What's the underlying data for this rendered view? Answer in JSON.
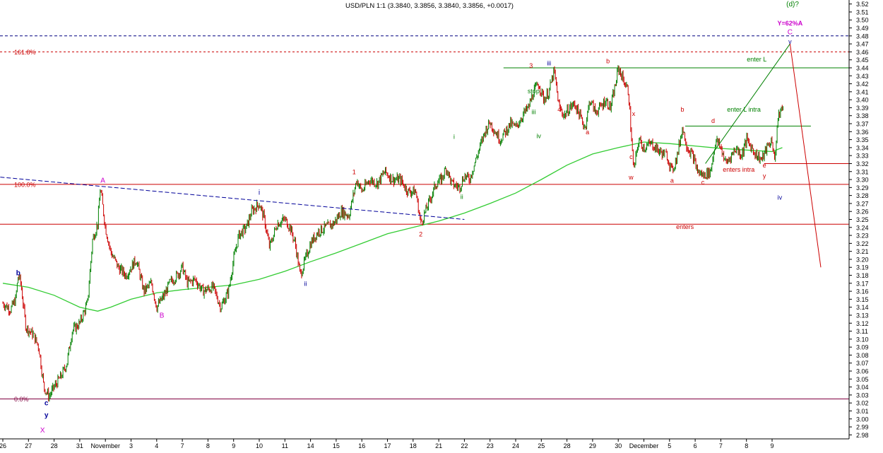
{
  "chart_data": {
    "type": "line",
    "title": "USD/PLN 1:1 (3.3840, 3.3856, 3.3840, 3.3856, +0.0017)",
    "colors": {
      "price_up": "#008000",
      "price_down": "#cc0000",
      "ma_line": "#33cc33",
      "channel_blue": "#000099",
      "fib_red": "#cc0000",
      "magenta": "#cc00cc",
      "navy": "#000099",
      "green_label": "#008000",
      "target_line": "#800040",
      "axis_text": "#000000",
      "grid_tick": "#000000"
    },
    "ylim": [
      2.975,
      3.525
    ],
    "y_ticks": [
      "3.52",
      "3.51",
      "3.50",
      "3.49",
      "3.48",
      "3.47",
      "3.46",
      "3.45",
      "3.44",
      "3.43",
      "3.42",
      "3.41",
      "3.40",
      "3.39",
      "3.38",
      "3.37",
      "3.36",
      "3.35",
      "3.34",
      "3.33",
      "3.32",
      "3.31",
      "3.30",
      "3.29",
      "3.28",
      "3.27",
      "3.26",
      "3.25",
      "3.24",
      "3.23",
      "3.22",
      "3.21",
      "3.20",
      "3.19",
      "3.18",
      "3.17",
      "3.16",
      "3.15",
      "3.14",
      "3.13",
      "3.12",
      "3.11",
      "3.10",
      "3.09",
      "3.08",
      "3.07",
      "3.06",
      "3.05",
      "3.04",
      "3.03",
      "3.02",
      "3.01",
      "3.00",
      "2.99",
      "2.98"
    ],
    "x_ticks": [
      {
        "label": "26",
        "i": 0
      },
      {
        "label": "27",
        "i": 1
      },
      {
        "label": "28",
        "i": 2
      },
      {
        "label": "31",
        "i": 3
      },
      {
        "label": "November",
        "i": 4
      },
      {
        "label": "3",
        "i": 5
      },
      {
        "label": "4",
        "i": 6
      },
      {
        "label": "7",
        "i": 7
      },
      {
        "label": "8",
        "i": 8
      },
      {
        "label": "9",
        "i": 9
      },
      {
        "label": "10",
        "i": 10
      },
      {
        "label": "11",
        "i": 11
      },
      {
        "label": "14",
        "i": 12
      },
      {
        "label": "15",
        "i": 13
      },
      {
        "label": "16",
        "i": 14
      },
      {
        "label": "17",
        "i": 15
      },
      {
        "label": "18",
        "i": 16
      },
      {
        "label": "21",
        "i": 17
      },
      {
        "label": "22",
        "i": 18
      },
      {
        "label": "23",
        "i": 19
      },
      {
        "label": "24",
        "i": 20
      },
      {
        "label": "25",
        "i": 21
      },
      {
        "label": "28",
        "i": 22
      },
      {
        "label": "29",
        "i": 23
      },
      {
        "label": "30",
        "i": 24
      },
      {
        "label": "December",
        "i": 25
      },
      {
        "label": "5",
        "i": 26
      },
      {
        "label": "6",
        "i": 27
      },
      {
        "label": "7",
        "i": 28
      },
      {
        "label": "8",
        "i": 29
      },
      {
        "label": "9",
        "i": 30
      }
    ],
    "price_path": [
      [
        0,
        3.145
      ],
      [
        0.3,
        3.137
      ],
      [
        0.5,
        3.15
      ],
      [
        0.6,
        3.18
      ],
      [
        0.7,
        3.17
      ],
      [
        0.9,
        3.115
      ],
      [
        1.2,
        3.105
      ],
      [
        1.4,
        3.09
      ],
      [
        1.6,
        3.04
      ],
      [
        1.8,
        3.028
      ],
      [
        2.0,
        3.04
      ],
      [
        2.3,
        3.055
      ],
      [
        2.5,
        3.07
      ],
      [
        2.7,
        3.11
      ],
      [
        3.0,
        3.12
      ],
      [
        3.3,
        3.145
      ],
      [
        3.5,
        3.225
      ],
      [
        3.7,
        3.245
      ],
      [
        3.8,
        3.29
      ],
      [
        4.0,
        3.24
      ],
      [
        4.2,
        3.21
      ],
      [
        4.5,
        3.19
      ],
      [
        4.8,
        3.18
      ],
      [
        5.2,
        3.2
      ],
      [
        5.5,
        3.16
      ],
      [
        5.8,
        3.17
      ],
      [
        6.0,
        3.14
      ],
      [
        6.3,
        3.155
      ],
      [
        6.5,
        3.17
      ],
      [
        6.8,
        3.18
      ],
      [
        7.0,
        3.19
      ],
      [
        7.2,
        3.17
      ],
      [
        7.5,
        3.175
      ],
      [
        7.8,
        3.16
      ],
      [
        8.2,
        3.165
      ],
      [
        8.5,
        3.14
      ],
      [
        8.8,
        3.16
      ],
      [
        9.0,
        3.2
      ],
      [
        9.2,
        3.23
      ],
      [
        9.5,
        3.24
      ],
      [
        9.7,
        3.26
      ],
      [
        10.0,
        3.27
      ],
      [
        10.2,
        3.25
      ],
      [
        10.4,
        3.215
      ],
      [
        10.7,
        3.245
      ],
      [
        11.0,
        3.25
      ],
      [
        11.2,
        3.24
      ],
      [
        11.4,
        3.22
      ],
      [
        11.6,
        3.18
      ],
      [
        11.8,
        3.2
      ],
      [
        12.0,
        3.22
      ],
      [
        12.3,
        3.235
      ],
      [
        12.6,
        3.24
      ],
      [
        12.9,
        3.245
      ],
      [
        13.2,
        3.26
      ],
      [
        13.5,
        3.255
      ],
      [
        13.8,
        3.3
      ],
      [
        14.0,
        3.285
      ],
      [
        14.3,
        3.3
      ],
      [
        14.6,
        3.295
      ],
      [
        14.9,
        3.31
      ],
      [
        15.2,
        3.3
      ],
      [
        15.5,
        3.3
      ],
      [
        15.8,
        3.285
      ],
      [
        16.1,
        3.285
      ],
      [
        16.3,
        3.245
      ],
      [
        16.6,
        3.27
      ],
      [
        16.9,
        3.295
      ],
      [
        17.1,
        3.3
      ],
      [
        17.3,
        3.315
      ],
      [
        17.5,
        3.295
      ],
      [
        17.8,
        3.29
      ],
      [
        18.0,
        3.305
      ],
      [
        18.2,
        3.3
      ],
      [
        18.5,
        3.33
      ],
      [
        18.8,
        3.36
      ],
      [
        19.0,
        3.372
      ],
      [
        19.2,
        3.36
      ],
      [
        19.4,
        3.35
      ],
      [
        19.6,
        3.36
      ],
      [
        19.8,
        3.37
      ],
      [
        20.0,
        3.365
      ],
      [
        20.3,
        3.382
      ],
      [
        20.5,
        3.39
      ],
      [
        20.7,
        3.41
      ],
      [
        20.9,
        3.42
      ],
      [
        21.1,
        3.4
      ],
      [
        21.3,
        3.41
      ],
      [
        21.5,
        3.436
      ],
      [
        21.7,
        3.39
      ],
      [
        21.9,
        3.38
      ],
      [
        22.1,
        3.39
      ],
      [
        22.3,
        3.395
      ],
      [
        22.5,
        3.38
      ],
      [
        22.7,
        3.365
      ],
      [
        22.9,
        3.4
      ],
      [
        23.1,
        3.385
      ],
      [
        23.3,
        3.39
      ],
      [
        23.5,
        3.4
      ],
      [
        23.7,
        3.39
      ],
      [
        23.9,
        3.42
      ],
      [
        24.0,
        3.44
      ],
      [
        24.2,
        3.425
      ],
      [
        24.4,
        3.41
      ],
      [
        24.6,
        3.31
      ],
      [
        24.8,
        3.35
      ],
      [
        25.0,
        3.34
      ],
      [
        25.3,
        3.345
      ],
      [
        25.6,
        3.335
      ],
      [
        25.9,
        3.33
      ],
      [
        26.1,
        3.31
      ],
      [
        26.3,
        3.33
      ],
      [
        26.5,
        3.365
      ],
      [
        26.7,
        3.34
      ],
      [
        26.9,
        3.33
      ],
      [
        27.1,
        3.31
      ],
      [
        27.3,
        3.305
      ],
      [
        27.6,
        3.31
      ],
      [
        27.8,
        3.35
      ],
      [
        28.0,
        3.34
      ],
      [
        28.2,
        3.32
      ],
      [
        28.4,
        3.33
      ],
      [
        28.6,
        3.34
      ],
      [
        28.8,
        3.33
      ],
      [
        29.0,
        3.35
      ],
      [
        29.2,
        3.34
      ],
      [
        29.4,
        3.33
      ],
      [
        29.6,
        3.325
      ],
      [
        29.8,
        3.34
      ],
      [
        30.0,
        3.35
      ],
      [
        30.1,
        3.32
      ],
      [
        30.2,
        3.37
      ],
      [
        30.35,
        3.39
      ],
      [
        30.45,
        3.385
      ]
    ],
    "ma_path": [
      [
        0,
        3.17
      ],
      [
        1,
        3.165
      ],
      [
        2,
        3.155
      ],
      [
        3,
        3.14
      ],
      [
        3.7,
        3.135
      ],
      [
        4.2,
        3.14
      ],
      [
        5.0,
        3.15
      ],
      [
        6.0,
        3.158
      ],
      [
        7.0,
        3.162
      ],
      [
        8.0,
        3.165
      ],
      [
        9.0,
        3.168
      ],
      [
        10.0,
        3.175
      ],
      [
        11.0,
        3.185
      ],
      [
        12.0,
        3.197
      ],
      [
        13.0,
        3.208
      ],
      [
        14.0,
        3.22
      ],
      [
        15.0,
        3.232
      ],
      [
        16.0,
        3.24
      ],
      [
        17.0,
        3.248
      ],
      [
        18.0,
        3.258
      ],
      [
        19.0,
        3.27
      ],
      [
        20.0,
        3.283
      ],
      [
        21.0,
        3.3
      ],
      [
        22.0,
        3.318
      ],
      [
        23.0,
        3.332
      ],
      [
        24.0,
        3.34
      ],
      [
        25.0,
        3.347
      ],
      [
        26.0,
        3.345
      ],
      [
        27.0,
        3.342
      ],
      [
        28.0,
        3.339
      ],
      [
        29.0,
        3.337
      ],
      [
        30.0,
        3.335
      ],
      [
        30.4,
        3.34
      ]
    ],
    "hlines": [
      {
        "label": "161.8%",
        "y": 3.46,
        "color": "#cc0000",
        "dash": "3,3",
        "x_from": 0.0,
        "x_to": 1.0,
        "label_side": "left"
      },
      {
        "label": "",
        "y": 3.48,
        "color": "#000080",
        "dash": "4,3",
        "x_from": 0.0,
        "x_to": 1.0,
        "label_side": "left"
      },
      {
        "label": "100.0%",
        "y": 3.294,
        "color": "#cc0000",
        "dash": "",
        "x_from": 0.0,
        "x_to": 1.0,
        "label_side": "left"
      },
      {
        "label": "0.0%",
        "y": 3.025,
        "color": "#800040",
        "dash": "",
        "x_from": 0.0,
        "x_to": 1.0,
        "label_side": "left"
      },
      {
        "label": "",
        "y": 3.244,
        "color": "#cc0000",
        "dash": "",
        "x_from": 0.0,
        "x_to": 1.0,
        "label_side": "left"
      },
      {
        "label": "",
        "y": 3.32,
        "color": "#cc0000",
        "dash": "",
        "x_from": 0.9,
        "x_to": 1.0,
        "label_side": "left"
      },
      {
        "label": "",
        "y": 3.44,
        "color": "#008000",
        "dash": "",
        "x_from": 0.593,
        "x_to": 1.0,
        "label_side": "left"
      },
      {
        "label": "",
        "y": 3.367,
        "color": "#008000",
        "dash": "",
        "x_from": 0.807,
        "x_to": 0.955,
        "label_side": "left"
      }
    ],
    "segments": [
      {
        "from": [
          -0.1,
          3.303
        ],
        "to": [
          18.0,
          3.25
        ],
        "color": "#000099",
        "dash": "6,3"
      },
      {
        "from": [
          27.4,
          3.32
        ],
        "to": [
          30.7,
          3.47
        ],
        "color": "#008000",
        "dash": ""
      },
      {
        "from": [
          30.7,
          3.47
        ],
        "to": [
          31.9,
          3.19
        ],
        "color": "#cc0000",
        "dash": ""
      }
    ],
    "annotations": [
      {
        "text": "(d)?",
        "x": 30.8,
        "y": 3.52,
        "color": "#008000",
        "size": 10
      },
      {
        "text": "Y=62%A",
        "x": 30.7,
        "y": 3.496,
        "color": "#cc00cc",
        "size": 9,
        "bold": true
      },
      {
        "text": "C",
        "x": 30.7,
        "y": 3.485,
        "color": "#cc00cc",
        "size": 10
      },
      {
        "text": "v",
        "x": 30.7,
        "y": 3.473,
        "color": "#000099",
        "size": 9
      },
      {
        "text": "A",
        "x": 3.9,
        "y": 3.299,
        "color": "#cc00cc",
        "size": 10
      },
      {
        "text": "B",
        "x": 6.2,
        "y": 3.13,
        "color": "#cc00cc",
        "size": 10
      },
      {
        "text": "b",
        "x": 0.6,
        "y": 3.183,
        "color": "#000099",
        "size": 10,
        "bold": true
      },
      {
        "text": "c",
        "x": 1.7,
        "y": 3.02,
        "color": "#000099",
        "size": 10,
        "bold": true
      },
      {
        "text": "y",
        "x": 1.7,
        "y": 3.005,
        "color": "#000099",
        "size": 10,
        "bold": true
      },
      {
        "text": "X",
        "x": 1.55,
        "y": 2.986,
        "color": "#cc00cc",
        "size": 10
      },
      {
        "text": "i",
        "x": 10.0,
        "y": 3.284,
        "color": "#000099",
        "size": 10
      },
      {
        "text": "ii",
        "x": 11.8,
        "y": 3.17,
        "color": "#000099",
        "size": 9
      },
      {
        "text": "iii",
        "x": 21.3,
        "y": 3.446,
        "color": "#000099",
        "size": 9
      },
      {
        "text": "iv",
        "x": 30.3,
        "y": 3.278,
        "color": "#000099",
        "size": 9
      },
      {
        "text": "1",
        "x": 13.7,
        "y": 3.31,
        "color": "#cc0000",
        "size": 9
      },
      {
        "text": "2",
        "x": 16.3,
        "y": 3.232,
        "color": "#cc0000",
        "size": 9
      },
      {
        "text": "3",
        "x": 20.6,
        "y": 3.443,
        "color": "#cc0000",
        "size": 9
      },
      {
        "text": "4",
        "x": 21.7,
        "y": 3.388,
        "color": "#cc0000",
        "size": 9
      },
      {
        "text": "i",
        "x": 17.6,
        "y": 3.354,
        "color": "#008000",
        "size": 9
      },
      {
        "text": "ii",
        "x": 17.9,
        "y": 3.279,
        "color": "#008000",
        "size": 9
      },
      {
        "text": "iii",
        "x": 20.7,
        "y": 3.385,
        "color": "#008000",
        "size": 9
      },
      {
        "text": "iv",
        "x": 20.9,
        "y": 3.355,
        "color": "#008000",
        "size": 9
      },
      {
        "text": "stop",
        "x": 20.7,
        "y": 3.411,
        "color": "#008000",
        "size": 9
      },
      {
        "text": "b",
        "x": 23.6,
        "y": 3.449,
        "color": "#cc0000",
        "size": 9
      },
      {
        "text": "a",
        "x": 22.8,
        "y": 3.36,
        "color": "#cc0000",
        "size": 9
      },
      {
        "text": "x",
        "x": 24.6,
        "y": 3.383,
        "color": "#cc0000",
        "size": 9
      },
      {
        "text": "c",
        "x": 24.5,
        "y": 3.329,
        "color": "#cc0000",
        "size": 9
      },
      {
        "text": "w",
        "x": 24.5,
        "y": 3.303,
        "color": "#cc0000",
        "size": 9
      },
      {
        "text": "a",
        "x": 26.1,
        "y": 3.299,
        "color": "#cc0000",
        "size": 9
      },
      {
        "text": "b",
        "x": 26.5,
        "y": 3.388,
        "color": "#cc0000",
        "size": 9
      },
      {
        "text": "d",
        "x": 27.7,
        "y": 3.374,
        "color": "#cc0000",
        "size": 9
      },
      {
        "text": "c",
        "x": 27.3,
        "y": 3.297,
        "color": "#cc0000",
        "size": 9
      },
      {
        "text": "e",
        "x": 29.7,
        "y": 3.318,
        "color": "#cc0000",
        "size": 9
      },
      {
        "text": "y",
        "x": 29.7,
        "y": 3.305,
        "color": "#cc0000",
        "size": 9
      },
      {
        "text": "enter L",
        "x": 29.4,
        "y": 3.451,
        "color": "#008000",
        "size": 9
      },
      {
        "text": "enter L intra",
        "x": 28.9,
        "y": 3.388,
        "color": "#008000",
        "size": 9
      },
      {
        "text": "enters intra",
        "x": 28.7,
        "y": 3.313,
        "color": "#cc0000",
        "size": 9
      },
      {
        "text": "enters",
        "x": 26.6,
        "y": 3.241,
        "color": "#cc0000",
        "size": 9
      }
    ]
  }
}
